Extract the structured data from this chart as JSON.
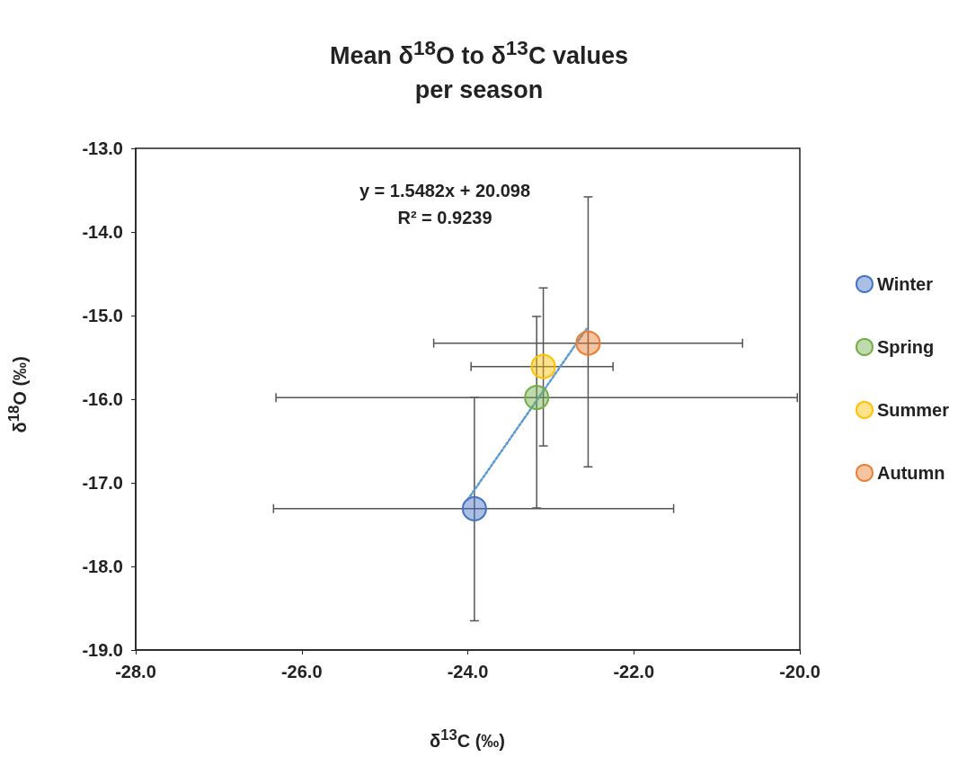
{
  "chart_data": {
    "type": "scatter",
    "title": "Mean δ$^{18}$O to δ$^{13}$C values per season",
    "xlabel": "δ$^{13}$C (‰)",
    "ylabel": "δ$^{18}$O (‰)",
    "xlim": [
      -28,
      -20
    ],
    "xticks": [
      {
        "value": -28,
        "label": "-28.0"
      },
      {
        "value": -26,
        "label": "-26.0"
      },
      {
        "value": -24,
        "label": "-24.0"
      },
      {
        "value": -22,
        "label": "-22.0"
      },
      {
        "value": -20,
        "label": "-20.0"
      }
    ],
    "ylim": [
      -19,
      -13
    ],
    "yticks": [
      {
        "value": -19,
        "label": "-19.0"
      },
      {
        "value": -18,
        "label": "-18.0"
      },
      {
        "value": -17,
        "label": "-17.0"
      },
      {
        "value": -16,
        "label": "-16.0"
      },
      {
        "value": -15,
        "label": "-15.0"
      },
      {
        "value": -14,
        "label": "-14.0"
      },
      {
        "value": -13,
        "label": "-13.0"
      }
    ],
    "grid": false,
    "legend": "right",
    "marker": "circle",
    "annotations": [
      "y = 1.5482x + 20.098",
      "R² = 0.9239"
    ],
    "series": [
      {
        "name": "Winter",
        "color": "#4472c4",
        "x": [
          -23.92
        ],
        "values": [
          -17.31
        ],
        "xerrors": [
          [
            -26.34,
            -21.52
          ]
        ],
        "errors": [
          [
            -18.65,
            -15.98
          ]
        ]
      },
      {
        "name": "Spring",
        "color": "#70ad47",
        "x": [
          -23.17
        ],
        "values": [
          -15.98
        ],
        "xerrors": [
          [
            -26.31,
            -20.03
          ]
        ],
        "errors": [
          [
            -17.3,
            -15.01
          ]
        ]
      },
      {
        "name": "Summer",
        "color": "#ffc000",
        "x": [
          -23.09
        ],
        "values": [
          -15.61
        ],
        "xerrors": [
          [
            -23.96,
            -22.25
          ]
        ],
        "errors": [
          [
            -16.56,
            -14.67
          ]
        ]
      },
      {
        "name": "Autumn",
        "color": "#ed7d31",
        "x": [
          -22.55
        ],
        "values": [
          -15.33
        ],
        "xerrors": [
          [
            -24.41,
            -20.69
          ]
        ],
        "errors": [
          [
            -16.81,
            -13.58
          ]
        ]
      },
      {
        "type": "line",
        "color": "#5b9bd5",
        "line_style": "dotted",
        "marker": "none",
        "x": [
          -24.0,
          -22.57
        ],
        "values": [
          -17.2,
          -15.16
        ]
      }
    ]
  }
}
